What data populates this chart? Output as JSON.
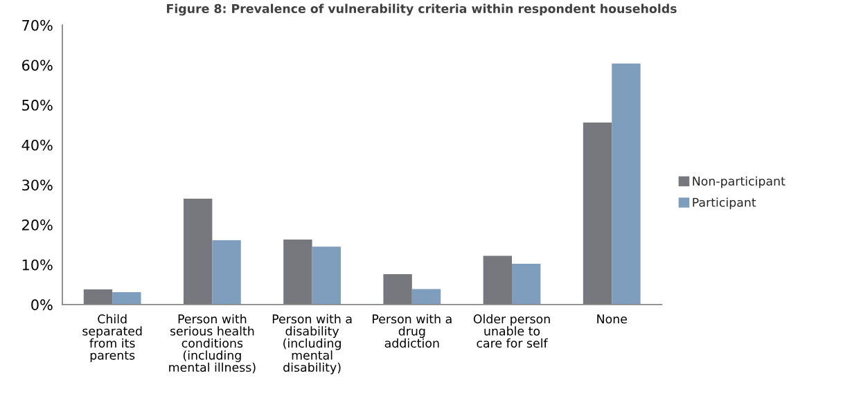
{
  "chart_data": {
    "type": "bar",
    "title": "Figure 8: Prevalence of vulnerability criteria within respondent households",
    "categories": [
      "Child\nseparated\nfrom its\nparents",
      "Person with\nserious health\nconditions\n(including\nmental illness)",
      "Person with a\ndisability\n(including\nmental\ndisability)",
      "Person with a\ndrug\naddiction",
      "Older person\nunable to\ncare for self",
      "None"
    ],
    "series": [
      {
        "name": "Non-participant",
        "color": "#76787e",
        "values": [
          3.8,
          26.5,
          16.3,
          7.6,
          12.2,
          45.6
        ]
      },
      {
        "name": "Participant",
        "color": "#7f9dbd",
        "values": [
          3.1,
          16.1,
          14.5,
          3.9,
          10.2,
          60.4
        ]
      }
    ],
    "ylim": [
      0,
      70
    ],
    "yticks": [
      {
        "value": 0,
        "label": "0%"
      },
      {
        "value": 10,
        "label": "10%"
      },
      {
        "value": 20,
        "label": "20%"
      },
      {
        "value": 30,
        "label": "30%"
      },
      {
        "value": 40,
        "label": "40%"
      },
      {
        "value": 50,
        "label": "50%"
      },
      {
        "value": 60,
        "label": "60%"
      },
      {
        "value": 70,
        "label": "70%"
      }
    ],
    "grid": false,
    "legend": "right"
  }
}
